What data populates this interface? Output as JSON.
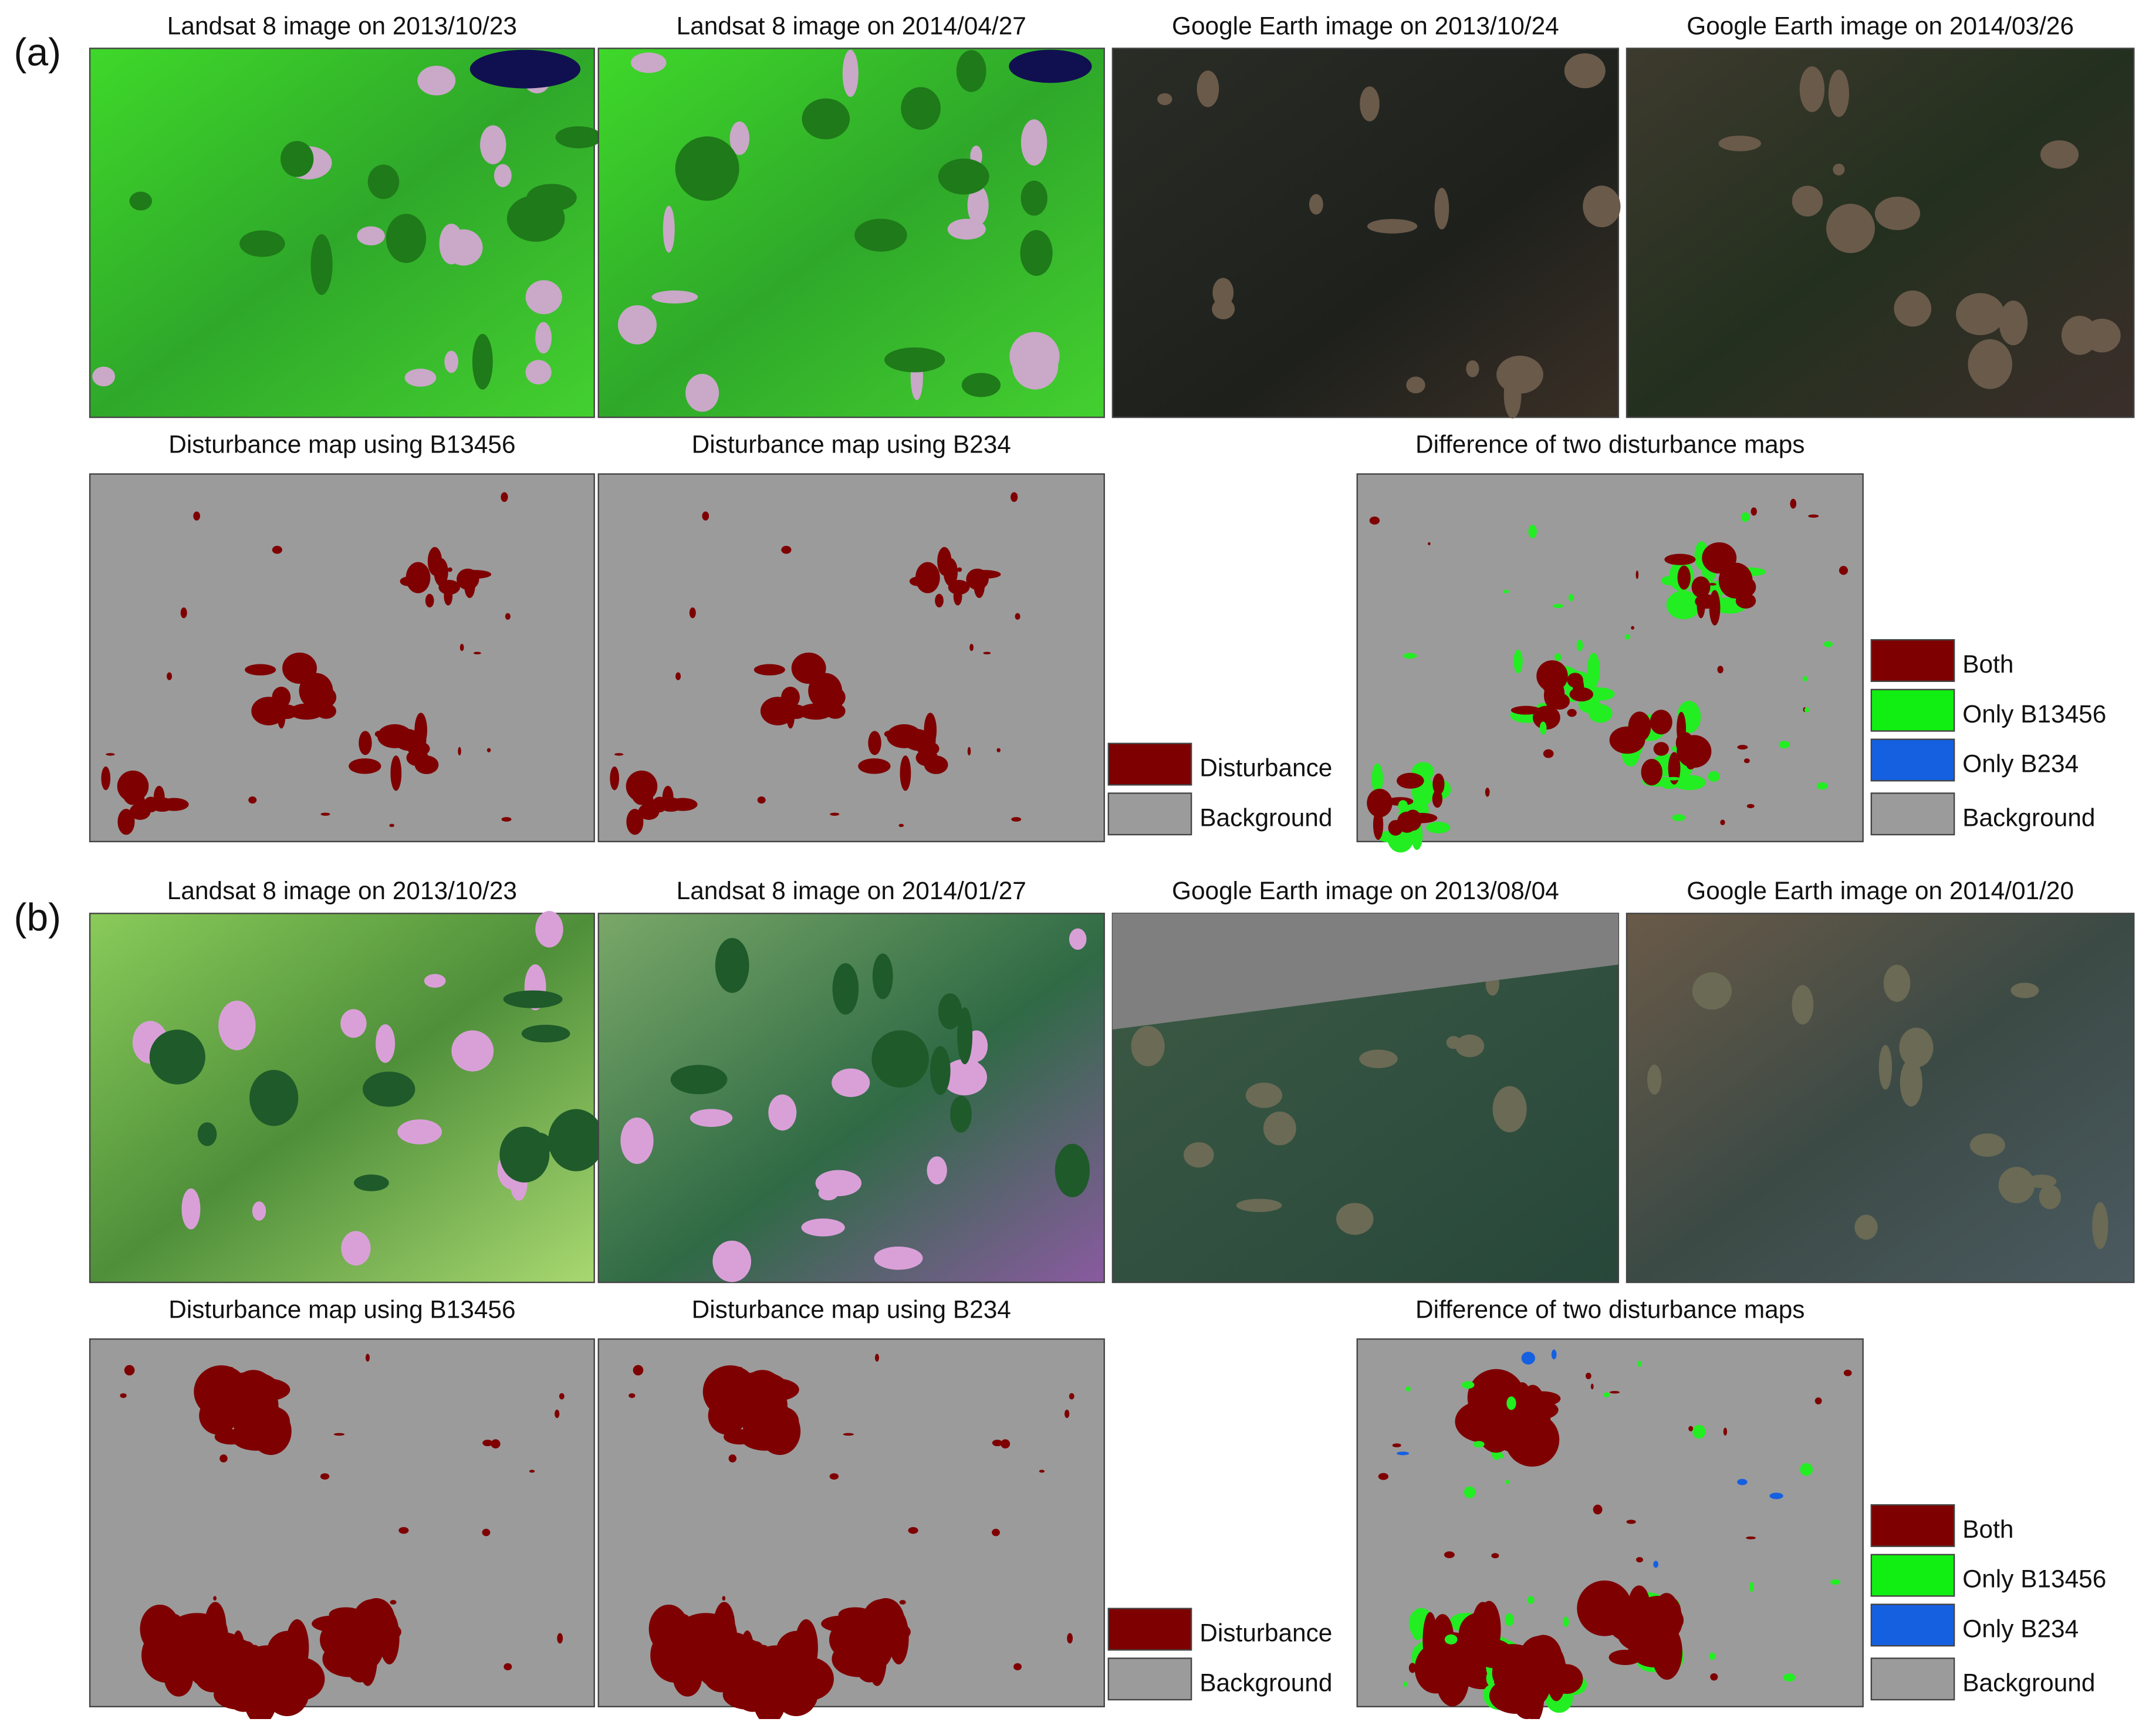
{
  "panels": [
    {
      "label": "(a)",
      "image_titles": [
        "Landsat 8 image on 2013/10/23",
        "Landsat 8 image on 2014/04/27",
        "Google Earth image on 2013/10/24",
        "Google Earth image on 2014/03/26"
      ],
      "map_titles": [
        "Disturbance map using B13456",
        "Disturbance map using B234",
        "Difference of two disturbance maps"
      ],
      "legend_maps": [
        "Disturbance",
        "Background"
      ],
      "legend_difference": [
        "Both",
        "Only B13456",
        "Only B234",
        "Background"
      ]
    },
    {
      "label": "(b)",
      "image_titles": [
        "Landsat 8 image on 2013/10/23",
        "Landsat 8 image on 2014/01/27",
        "Google Earth image on 2013/08/04",
        "Google Earth image on 2014/01/20"
      ],
      "map_titles": [
        "Disturbance map using B13456",
        "Disturbance map using B234",
        "Difference of two disturbance maps"
      ],
      "legend_maps": [
        "Disturbance",
        "Background"
      ],
      "legend_difference": [
        "Both",
        "Only B13456",
        "Only B234",
        "Background"
      ]
    }
  ]
}
